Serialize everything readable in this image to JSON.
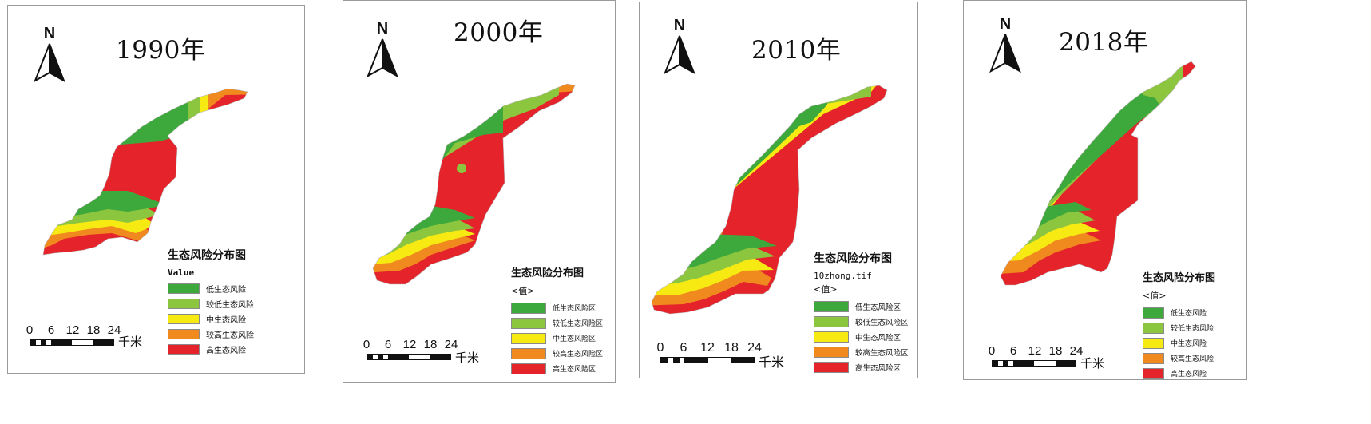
{
  "colors": {
    "low": "#3da83b",
    "lower": "#8cc63f",
    "mid": "#f6ea12",
    "higher": "#f08a1f",
    "high": "#e4232b"
  },
  "north_label": "N",
  "scale_ticks": [
    "0",
    "6",
    "12",
    "18",
    "24"
  ],
  "scale_unit": "千米",
  "panels": [
    {
      "title": "1990年",
      "legend_title": "生态风险分布图",
      "legend_sub1": "Value",
      "legend_sub2": "",
      "classes": [
        "低生态风险",
        "较低生态风险",
        "中生态风险",
        "较高生态风险",
        "高生态风险"
      ]
    },
    {
      "title": "2000年",
      "legend_title": "生态风险分布图",
      "legend_sub1": "<值>",
      "legend_sub2": "",
      "classes": [
        "低生态风险区",
        "较低生态风险区",
        "中生态风险区",
        "较高生态风险区",
        "高生态风险区"
      ]
    },
    {
      "title": "2010年",
      "legend_title": "生态风险分布图",
      "legend_sub1": "10zhong.tif",
      "legend_sub2": "<值>",
      "classes": [
        "低生态风险区",
        "较低生态风险区",
        "中生态风险区",
        "较高生态风险区",
        "高生态风险区"
      ]
    },
    {
      "title": "2018年",
      "legend_title": "生态风险分布图",
      "legend_sub1": "<值>",
      "legend_sub2": "",
      "classes": [
        "低生态风险",
        "较低生态风险",
        "中生态风险",
        "较高生态风险",
        "高生态风险"
      ]
    }
  ]
}
